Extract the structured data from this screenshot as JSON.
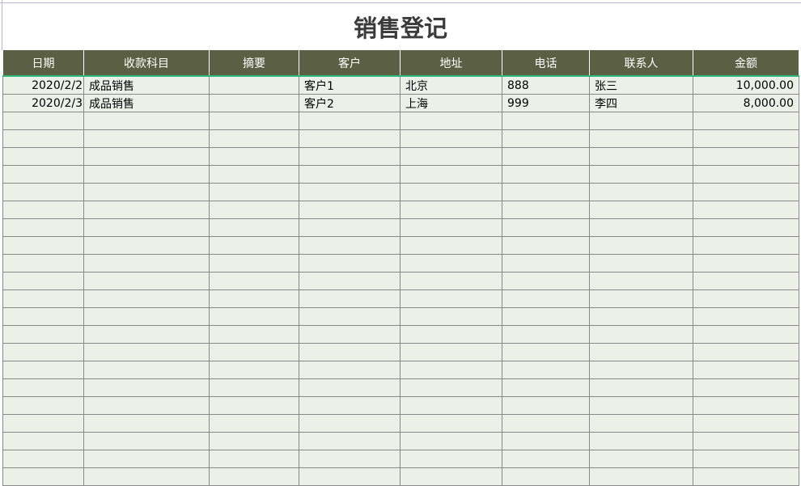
{
  "title": "销售登记",
  "columns": [
    "日期",
    "收款科目",
    "摘要",
    "客户",
    "地址",
    "电话",
    "联系人",
    "金额"
  ],
  "rows": [
    {
      "date": "2020/2/2",
      "subject": "成品销售",
      "summary": "",
      "customer": "客户1",
      "address": "北京",
      "phone": "888",
      "contact": "张三",
      "amount": "10,000.00"
    },
    {
      "date": "2020/2/3",
      "subject": "成品销售",
      "summary": "",
      "customer": "客户2",
      "address": "上海",
      "phone": "999",
      "contact": "李四",
      "amount": "8,000.00"
    }
  ],
  "colors": {
    "header_bg": "#5b6045",
    "cell_bg": "#edefe9",
    "header_underline": "#2fb67a"
  }
}
